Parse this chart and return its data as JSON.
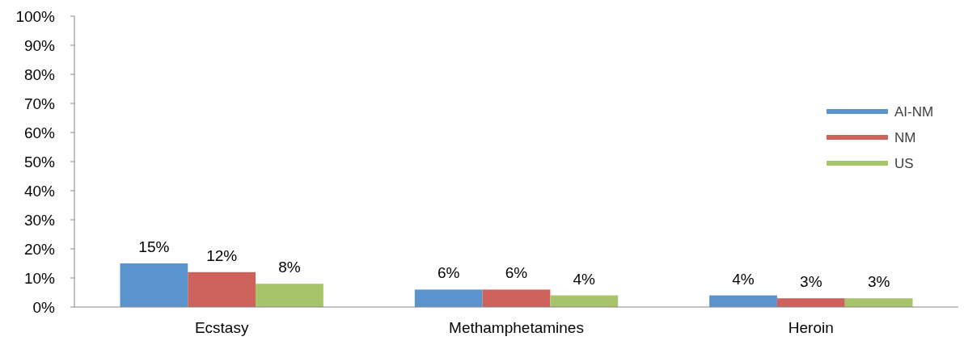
{
  "chart_data": {
    "type": "bar",
    "categories": [
      "Ecstasy",
      "Methamphetamines",
      "Heroin"
    ],
    "series": [
      {
        "name": "AI-NM",
        "color": "#5b93cc",
        "values": [
          15,
          6,
          4
        ]
      },
      {
        "name": "NM",
        "color": "#cd625d",
        "values": [
          12,
          6,
          3
        ]
      },
      {
        "name": "US",
        "color": "#a8c46a",
        "values": [
          8,
          4,
          3
        ]
      }
    ],
    "ylim": [
      0,
      100
    ],
    "yticks": [
      {
        "value": 0,
        "label": "0%"
      },
      {
        "value": 10,
        "label": "10%"
      },
      {
        "value": 20,
        "label": "20%"
      },
      {
        "value": 30,
        "label": "30%"
      },
      {
        "value": 40,
        "label": "40%"
      },
      {
        "value": 50,
        "label": "50%"
      },
      {
        "value": 60,
        "label": "60%"
      },
      {
        "value": 70,
        "label": "70%"
      },
      {
        "value": 80,
        "label": "80%"
      },
      {
        "value": 90,
        "label": "90%"
      },
      {
        "value": 100,
        "label": "100%"
      }
    ],
    "value_labels": [
      [
        "15%",
        "6%",
        "4%"
      ],
      [
        "12%",
        "6%",
        "3%"
      ],
      [
        "8%",
        "4%",
        "3%"
      ]
    ],
    "legend": "right",
    "grid": false
  }
}
